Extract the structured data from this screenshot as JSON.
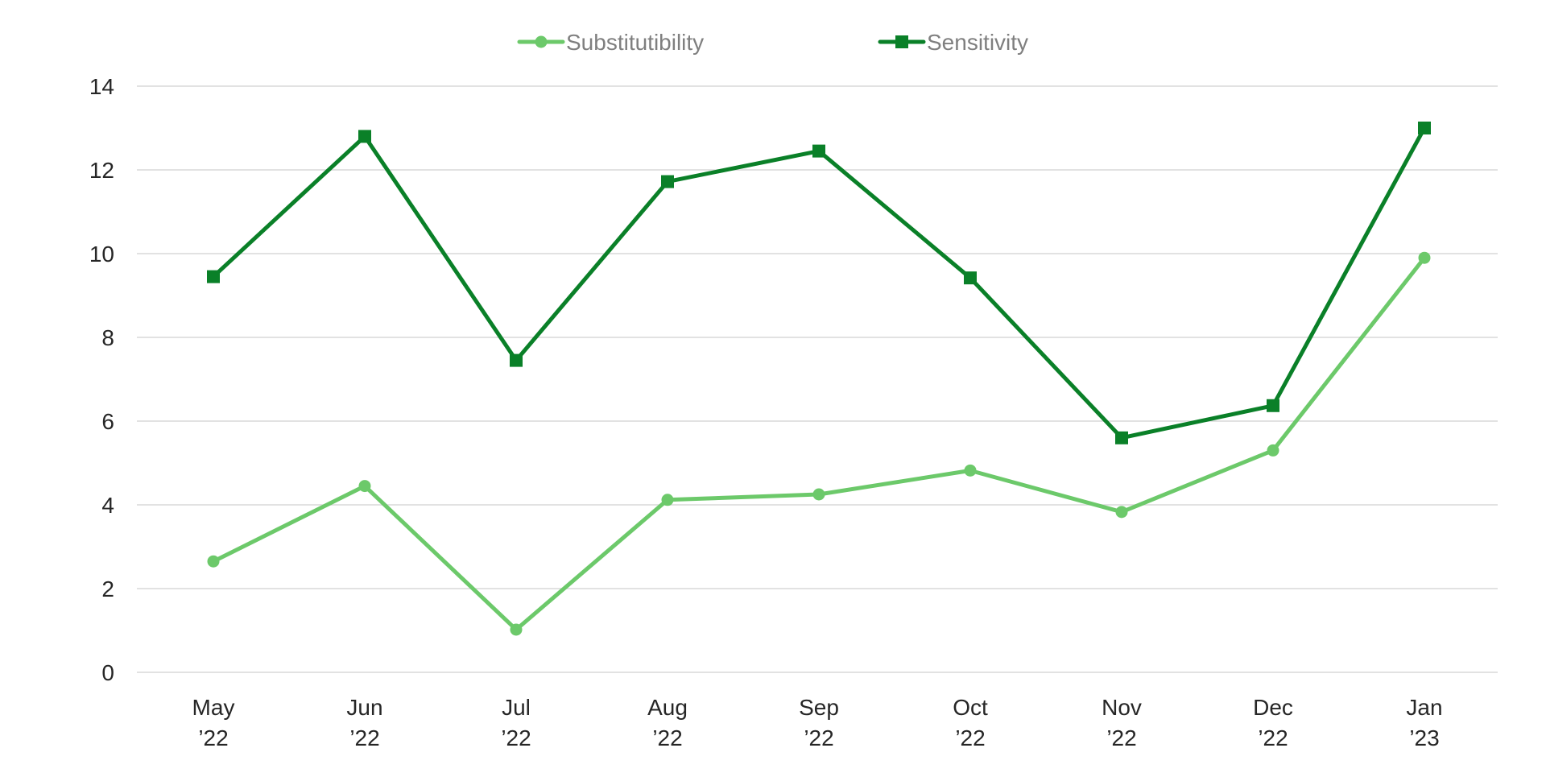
{
  "chart_data": {
    "type": "line",
    "title": "",
    "xlabel": "",
    "ylabel": "",
    "categories": [
      [
        "May",
        "’22"
      ],
      [
        "Jun",
        "’22"
      ],
      [
        "Jul",
        "’22"
      ],
      [
        "Aug",
        "’22"
      ],
      [
        "Sep",
        "’22"
      ],
      [
        "Oct",
        "’22"
      ],
      [
        "Nov",
        "’22"
      ],
      [
        "Dec",
        "’22"
      ],
      [
        "Jan",
        "’23"
      ]
    ],
    "ylim": [
      0,
      14
    ],
    "yticks": [
      0,
      2,
      4,
      6,
      8,
      10,
      12,
      14
    ],
    "grid": "horizontal",
    "legend_position": "top-center",
    "series": [
      {
        "name": "Substitutibility",
        "color": "#6cc96a",
        "marker": "circle",
        "values": [
          2.65,
          4.45,
          1.02,
          4.12,
          4.25,
          4.82,
          3.83,
          5.3,
          9.9
        ]
      },
      {
        "name": "Sensitivity",
        "color": "#0a8028",
        "marker": "square",
        "values": [
          9.45,
          12.8,
          7.45,
          11.72,
          12.45,
          9.42,
          5.6,
          6.37,
          13.0
        ]
      }
    ]
  }
}
